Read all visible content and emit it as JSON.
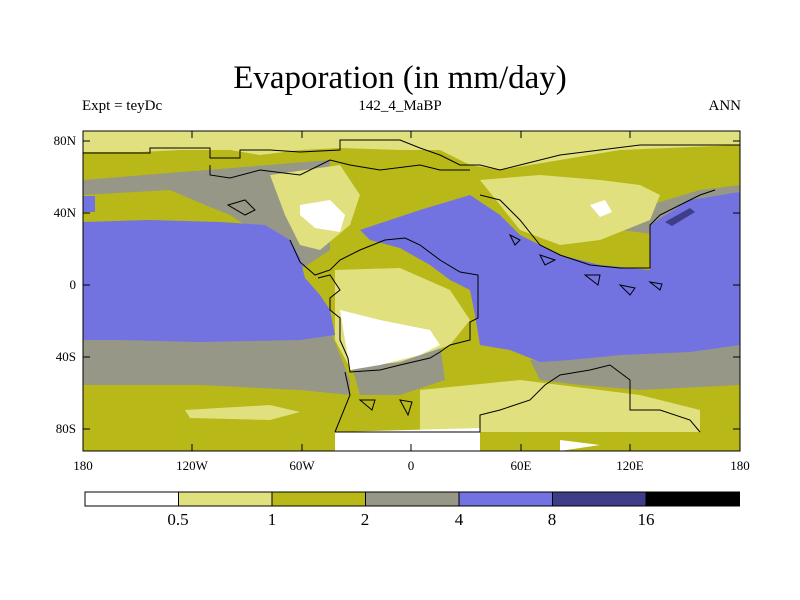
{
  "title": "Evaporation (in mm/day)",
  "experiment": "Expt = teyDc",
  "case_name": "142_4_MaBP",
  "season": "ANN",
  "lat_labels": [
    "80N",
    "40N",
    "0",
    "40S",
    "80S"
  ],
  "lon_labels": [
    "180",
    "120W",
    "60W",
    "0",
    "60E",
    "120E",
    "180"
  ],
  "colorbar": {
    "colors": [
      "#ffffff",
      "#e0e07f",
      "#b8b818",
      "#979787",
      "#7272e0",
      "#3e3e88",
      "#000000"
    ],
    "labels": [
      "0.5",
      "1",
      "2",
      "4",
      "8",
      "16"
    ]
  },
  "chart_data": {
    "type": "map-contour",
    "title": "Evaporation (in mm/day)",
    "variable": "Evaporation",
    "units": "mm/day",
    "levels": [
      0.5,
      1,
      2,
      4,
      8,
      16
    ],
    "lon_range": [
      -180,
      180
    ],
    "lat_range": [
      -90,
      90
    ]
  }
}
